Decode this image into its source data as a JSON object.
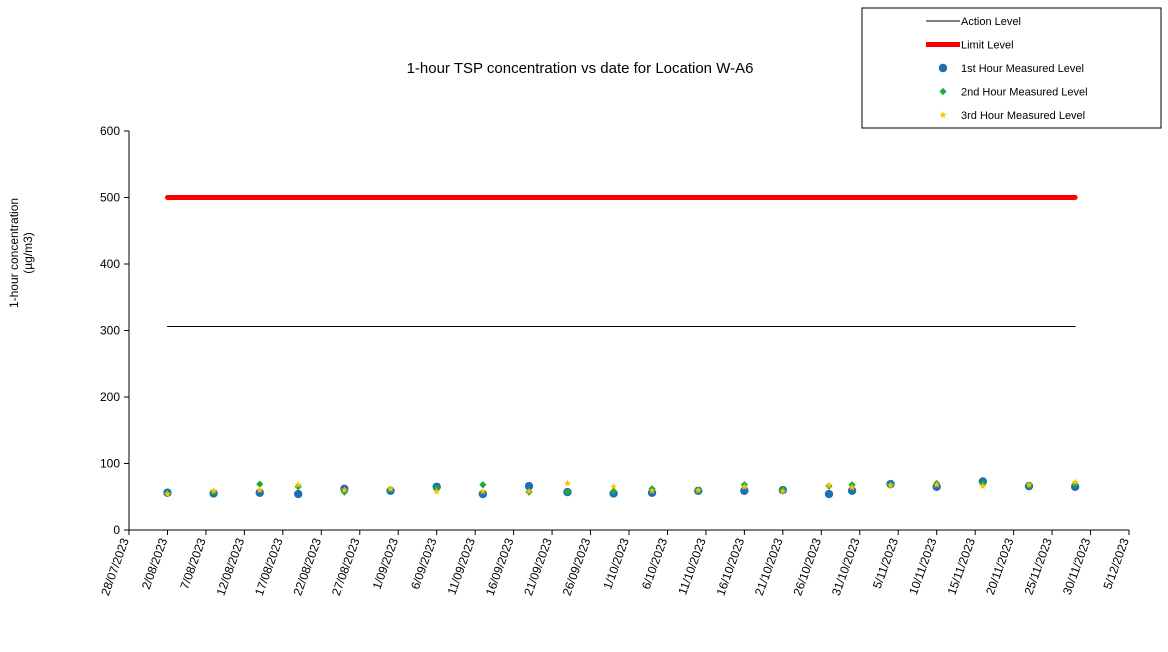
{
  "chart_data": {
    "type": "scatter",
    "title": "1-hour TSP concentration vs date for Location  W-A6",
    "ylabel_line1": "1-hour concentration",
    "ylabel_line2": "(µg/m3)",
    "xlabel": "",
    "ylim": [
      0,
      600
    ],
    "y_ticks": [
      "0",
      "100",
      "200",
      "300",
      "400",
      "500",
      "600"
    ],
    "xlim": [
      "2023-07-28",
      "2023-12-05"
    ],
    "x_ticks": [
      "28/07/2023",
      "2/08/2023",
      "7/08/2023",
      "12/08/2023",
      "17/08/2023",
      "22/08/2023",
      "27/08/2023",
      "1/09/2023",
      "6/09/2023",
      "11/09/2023",
      "16/09/2023",
      "21/09/2023",
      "26/09/2023",
      "1/10/2023",
      "6/10/2023",
      "11/10/2023",
      "16/10/2023",
      "21/10/2023",
      "26/10/2023",
      "31/10/2023",
      "5/11/2023",
      "10/11/2023",
      "15/11/2023",
      "20/11/2023",
      "25/11/2023",
      "30/11/2023",
      "5/12/2023"
    ],
    "grid": false,
    "legend_position": "top-right",
    "x_dates": [
      "2023-08-02",
      "2023-08-08",
      "2023-08-14",
      "2023-08-19",
      "2023-08-25",
      "2023-08-31",
      "2023-09-06",
      "2023-09-12",
      "2023-09-18",
      "2023-09-23",
      "2023-09-29",
      "2023-10-04",
      "2023-10-10",
      "2023-10-16",
      "2023-10-21",
      "2023-10-27",
      "2023-10-30",
      "2023-11-04",
      "2023-11-10",
      "2023-11-16",
      "2023-11-22",
      "2023-11-28"
    ],
    "series": [
      {
        "name": "Action Level",
        "kind": "line",
        "color": "#000000",
        "x": [
          "2023-08-02",
          "2023-11-28"
        ],
        "values": [
          306,
          306
        ]
      },
      {
        "name": "Limit Level",
        "kind": "line",
        "color": "#ff0000",
        "x": [
          "2023-08-02",
          "2023-11-28"
        ],
        "values": [
          500,
          500
        ]
      },
      {
        "name": "1st Hour Measured Level",
        "kind": "points",
        "marker": "circle",
        "color": "#1f6fb4",
        "values": [
          56,
          55,
          56,
          54,
          62,
          59,
          65,
          54,
          66,
          57,
          55,
          56,
          59,
          59,
          60,
          54,
          59,
          69,
          65,
          73,
          66,
          65
        ]
      },
      {
        "name": "2nd Hour Measured Level",
        "kind": "points",
        "marker": "diamond",
        "color": "#1bab3b",
        "values": [
          55,
          57,
          69,
          65,
          57,
          61,
          63,
          68,
          57,
          57,
          58,
          62,
          59,
          68,
          61,
          66,
          68,
          68,
          70,
          70,
          67,
          69
        ]
      },
      {
        "name": "3rd Hour Measured Level",
        "kind": "points",
        "marker": "star",
        "color": "#ffbf00",
        "values": [
          54,
          59,
          60,
          68,
          60,
          62,
          58,
          58,
          58,
          70,
          65,
          59,
          60,
          65,
          58,
          67,
          64,
          67,
          68,
          66,
          68,
          72
        ]
      }
    ]
  }
}
